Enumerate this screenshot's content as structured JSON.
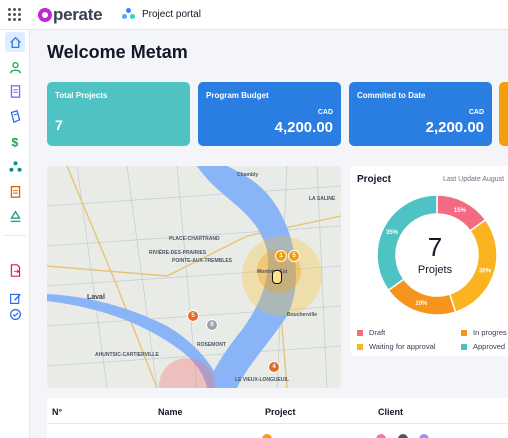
{
  "header": {
    "logo_text": "perate",
    "portal_label": "Project portal"
  },
  "sidebar": {
    "items": [
      {
        "icon": "home-icon",
        "active": true
      },
      {
        "icon": "user-icon"
      },
      {
        "icon": "document-icon"
      },
      {
        "icon": "book-icon"
      },
      {
        "icon": "dollar-icon"
      },
      {
        "icon": "hierarchy-icon"
      },
      {
        "icon": "clipboard-icon"
      },
      {
        "icon": "network-icon"
      },
      {
        "icon": "file-export-icon"
      },
      {
        "icon": "edit-icon"
      },
      {
        "icon": "check-circle-icon"
      }
    ]
  },
  "welcome": "Welcome Metam",
  "cards": {
    "total": {
      "title": "Total Projects",
      "value": "7"
    },
    "budget": {
      "title": "Program Budget",
      "currency": "CAD",
      "value": "4,200.00"
    },
    "committed": {
      "title": "Commited to Date",
      "currency": "CAD",
      "value": "2,200.00"
    }
  },
  "map": {
    "labels": [
      {
        "text": "Chambly",
        "big": false
      },
      {
        "text": "LA SALINE",
        "big": false
      },
      {
        "text": "PLACE-CHARTRAND",
        "big": false
      },
      {
        "text": "RIVIÈRE-DES-PRAIRIES",
        "big": false
      },
      {
        "text": "POINTE-AUX-TREMBLES",
        "big": false
      },
      {
        "text": "Laval",
        "big": true
      },
      {
        "text": "Montréal-Est",
        "big": false
      },
      {
        "text": "Boucherville",
        "big": false
      },
      {
        "text": "AHUNTSIC-CARTIERVILLE",
        "big": false
      },
      {
        "text": "LE VIEUX-LONGUEUIL",
        "big": false
      },
      {
        "text": "ROSEMONT",
        "big": false
      }
    ],
    "markers": [
      "1",
      "5",
      "5",
      "4",
      "6"
    ]
  },
  "project": {
    "title": "Project",
    "last_update": "Last Update August",
    "total": "7",
    "total_label": "Projets",
    "legend": [
      {
        "label": "Draft",
        "color": "#f26b83"
      },
      {
        "label": "In progres",
        "color": "#f7941d"
      },
      {
        "label": "Waiting for approval",
        "color": "#fbb31f"
      },
      {
        "label": "Approved",
        "color": "#4fc3c3"
      }
    ],
    "chart_data": {
      "type": "pie",
      "categories": [
        "Draft",
        "Waiting for approval",
        "In progress",
        "Approved"
      ],
      "values": [
        15,
        30,
        20,
        35
      ],
      "data_labels": [
        "15%",
        "30%",
        "20%",
        "35%"
      ]
    }
  },
  "table": {
    "headers": [
      "N°",
      "Name",
      "Project",
      "Client"
    ]
  }
}
